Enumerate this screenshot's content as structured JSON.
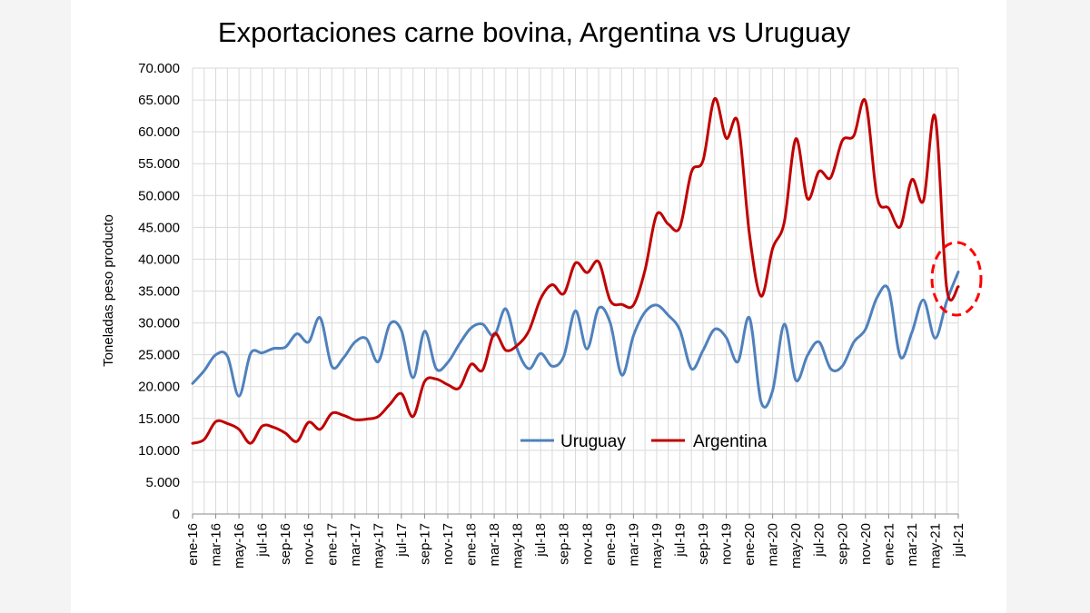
{
  "chart_data": {
    "type": "line",
    "title": "Exportaciones carne bovina, Argentina vs Uruguay",
    "xlabel": "",
    "ylabel": "Toneladas  peso producto",
    "ylim": [
      0,
      70000
    ],
    "yticks": [
      "0",
      "5.000",
      "10.000",
      "15.000",
      "20.000",
      "25.000",
      "30.000",
      "35.000",
      "40.000",
      "45.000",
      "50.000",
      "55.000",
      "60.000",
      "65.000",
      "70.000"
    ],
    "ytick_values": [
      0,
      5000,
      10000,
      15000,
      20000,
      25000,
      30000,
      35000,
      40000,
      45000,
      50000,
      55000,
      60000,
      65000,
      70000
    ],
    "categories": [
      "ene-16",
      "feb-16",
      "mar-16",
      "abr-16",
      "may-16",
      "jun-16",
      "jul-16",
      "ago-16",
      "sep-16",
      "oct-16",
      "nov-16",
      "dic-16",
      "ene-17",
      "feb-17",
      "mar-17",
      "abr-17",
      "may-17",
      "jun-17",
      "jul-17",
      "ago-17",
      "sep-17",
      "oct-17",
      "nov-17",
      "dic-17",
      "ene-18",
      "feb-18",
      "mar-18",
      "abr-18",
      "may-18",
      "jun-18",
      "jul-18",
      "ago-18",
      "sep-18",
      "oct-18",
      "nov-18",
      "dic-18",
      "ene-19",
      "feb-19",
      "mar-19",
      "abr-19",
      "may-19",
      "jun-19",
      "jul-19",
      "ago-19",
      "sep-19",
      "oct-19",
      "nov-19",
      "dic-19",
      "ene-20",
      "feb-20",
      "mar-20",
      "abr-20",
      "may-20",
      "jun-20",
      "jul-20",
      "ago-20",
      "sep-20",
      "oct-20",
      "nov-20",
      "dic-20",
      "ene-21",
      "feb-21",
      "mar-21",
      "abr-21",
      "may-21",
      "jun-21",
      "jul-21"
    ],
    "xtick_labels": [
      "ene-16",
      "mar-16",
      "may-16",
      "jul-16",
      "sep-16",
      "nov-16",
      "ene-17",
      "mar-17",
      "may-17",
      "jul-17",
      "sep-17",
      "nov-17",
      "ene-18",
      "mar-18",
      "may-18",
      "jul-18",
      "sep-18",
      "nov-18",
      "ene-19",
      "mar-19",
      "may-19",
      "jul-19",
      "sep-19",
      "nov-19",
      "ene-20",
      "mar-20",
      "may-20",
      "jul-20",
      "sep-20",
      "nov-20",
      "ene-21",
      "mar-21",
      "may-21",
      "jul-21"
    ],
    "series": [
      {
        "name": "Uruguay",
        "color": "#4f81bd",
        "values": [
          20500,
          22500,
          25000,
          24800,
          18500,
          25200,
          25300,
          26000,
          26200,
          28300,
          27000,
          30800,
          23200,
          24500,
          27000,
          27500,
          23900,
          29800,
          28800,
          21400,
          28700,
          22800,
          23800,
          26700,
          29200,
          29800,
          28000,
          32200,
          25800,
          22800,
          25200,
          23200,
          24800,
          31900,
          25900,
          32300,
          30000,
          21800,
          28000,
          31700,
          32800,
          31200,
          28900,
          22800,
          25700,
          29000,
          27700,
          23900,
          30800,
          17600,
          19400,
          29800,
          21000,
          24900,
          27000,
          22800,
          23200,
          27000,
          29000,
          34000,
          35200,
          24700,
          28500,
          33600,
          27600,
          33400,
          38000
        ]
      },
      {
        "name": "Argentina",
        "color": "#c00000",
        "values": [
          11100,
          11700,
          14500,
          14200,
          13300,
          11100,
          13800,
          13600,
          12700,
          11400,
          14400,
          13300,
          15800,
          15500,
          14800,
          14900,
          15300,
          17200,
          18900,
          15300,
          20800,
          21200,
          20300,
          19800,
          23500,
          22600,
          28300,
          25700,
          26500,
          28800,
          33800,
          36000,
          34600,
          39400,
          37900,
          39600,
          33500,
          32900,
          32800,
          38300,
          47000,
          45500,
          45000,
          53700,
          55500,
          65200,
          59000,
          61500,
          43900,
          34200,
          41700,
          45800,
          58900,
          49500,
          53800,
          52800,
          58600,
          59400,
          64800,
          49800,
          48000,
          45100,
          52500,
          49200,
          62400,
          35500,
          35700
        ]
      }
    ],
    "legend": [
      "Uruguay",
      "Argentina"
    ],
    "legend_position": "center"
  }
}
